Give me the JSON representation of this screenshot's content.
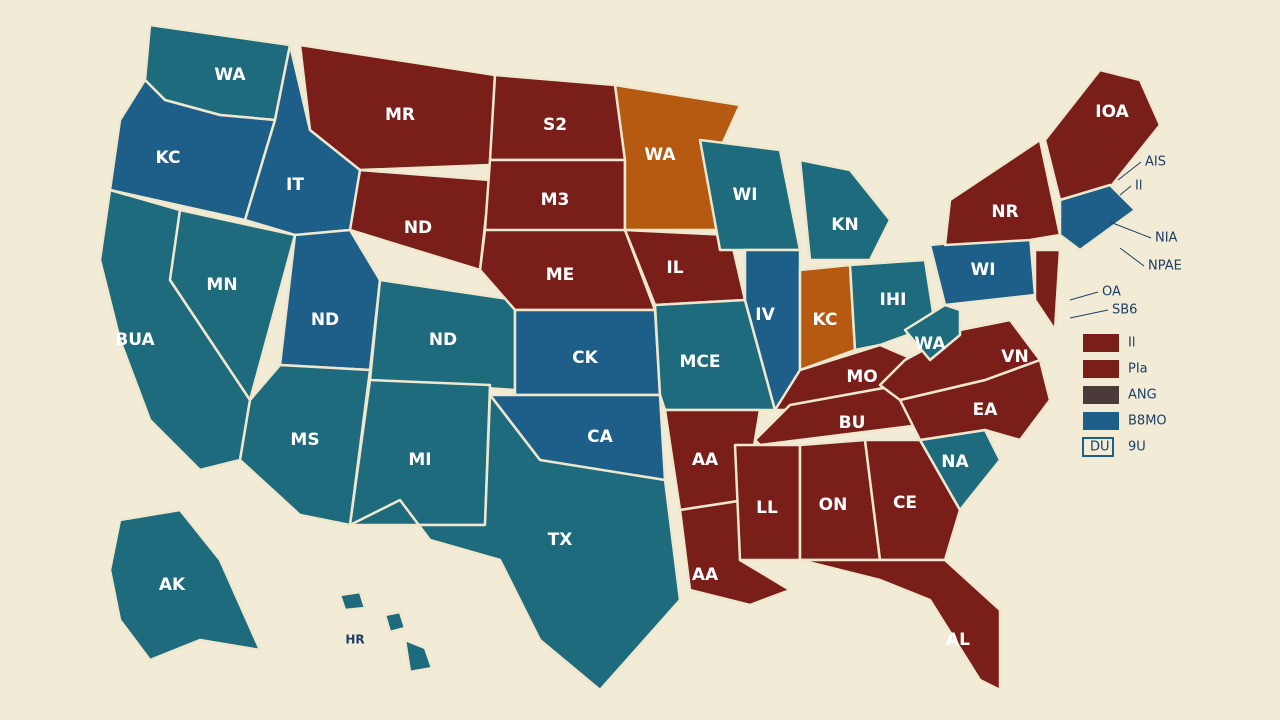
{
  "map": {
    "states": [
      {
        "label": "WA",
        "color": "#1d6b7c"
      },
      {
        "label": "KC",
        "color": "#1e5f8a"
      },
      {
        "label": "BUA",
        "color": "#1d6b7c"
      },
      {
        "label": "MN",
        "color": "#1d6b7c"
      },
      {
        "label": "IT",
        "color": "#1e5f8a"
      },
      {
        "label": "MR",
        "color": "#7a1e1a"
      },
      {
        "label": "ND",
        "color": "#7a1e1a"
      },
      {
        "label": "ND",
        "color": "#1e5f8a"
      },
      {
        "label": "ND",
        "color": "#1d6b7c"
      },
      {
        "label": "MS",
        "color": "#1d6b7c"
      },
      {
        "label": "MI",
        "color": "#1d6b7c"
      },
      {
        "label": "S2",
        "color": "#7a1e1a"
      },
      {
        "label": "M3",
        "color": "#7a1e1a"
      },
      {
        "label": "ME",
        "color": "#7a1e1a"
      },
      {
        "label": "CK",
        "color": "#1e5f8a"
      },
      {
        "label": "CA",
        "color": "#1e5f8a"
      },
      {
        "label": "TX",
        "color": "#1d6b7c"
      },
      {
        "label": "WA",
        "color": "#b55a10"
      },
      {
        "label": "IL",
        "color": "#7a1e1a"
      },
      {
        "label": "MCE",
        "color": "#1d6b7c"
      },
      {
        "label": "AA",
        "color": "#7a1e1a"
      },
      {
        "label": "AA",
        "color": "#7a1e1a"
      },
      {
        "label": "WI",
        "color": "#1d6b7c"
      },
      {
        "label": "KN",
        "color": "#1d6b7c"
      },
      {
        "label": "IV",
        "color": "#1e5f8a"
      },
      {
        "label": "KC",
        "color": "#b55a10"
      },
      {
        "label": "IHI",
        "color": "#1d6b7c"
      },
      {
        "label": "MO",
        "color": "#7a1e1a"
      },
      {
        "label": "BU",
        "color": "#7a1e1a"
      },
      {
        "label": "LL",
        "color": "#7a1e1a"
      },
      {
        "label": "ON",
        "color": "#7a1e1a"
      },
      {
        "label": "CE",
        "color": "#7a1e1a"
      },
      {
        "label": "AL",
        "color": "#7a1e1a"
      },
      {
        "label": "NA",
        "color": "#1d6b7c"
      },
      {
        "label": "EA",
        "color": "#7a1e1a"
      },
      {
        "label": "VN",
        "color": "#7a1e1a"
      },
      {
        "label": "WA",
        "color": "#1d6b7c"
      },
      {
        "label": "WI",
        "color": "#1e5f8a"
      },
      {
        "label": "NR",
        "color": "#7a1e1a"
      },
      {
        "color": "#7a1e1a"
      },
      {
        "label": "IOA",
        "color": "#7a1e1a"
      },
      {
        "color": "#1e5f8a"
      },
      {
        "label": "AK",
        "color": "#1d6b7c"
      },
      {
        "label": "HR",
        "color": "#1d6b7c"
      }
    ],
    "annotations": [
      "AIS",
      "Il",
      "NIA",
      "NPAE",
      "OA",
      "SB6"
    ],
    "legend": [
      {
        "label": "Il",
        "color": "#7a1e1a"
      },
      {
        "label": "PIa",
        "color": "#7a1e1a"
      },
      {
        "label": "ANG",
        "color": "#4a3a3a"
      },
      {
        "label": "B8MO",
        "color": "#1e5f8a"
      },
      {
        "label": "9U",
        "color": "#1e5f8a",
        "box": "DU"
      }
    ]
  }
}
